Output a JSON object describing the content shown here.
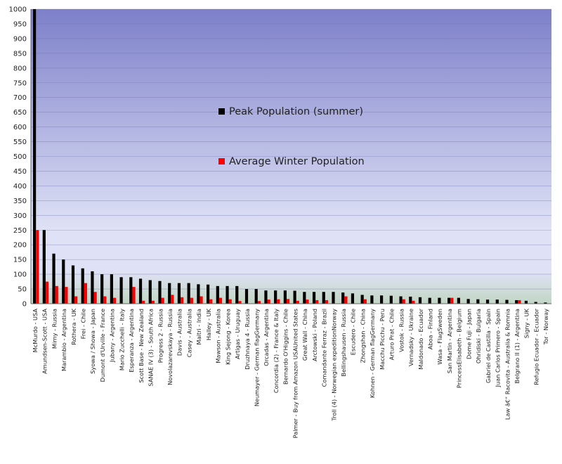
{
  "chart_data": {
    "type": "bar",
    "title": "",
    "xlabel": "",
    "ylabel": "",
    "ylim": [
      0,
      1000
    ],
    "ytick_step": 50,
    "grid": true,
    "legend_placement": "center",
    "colors": {
      "summer": "#000000",
      "winter": "#ff0000",
      "plot_top": "#7d80c9",
      "plot_mid": "#dfe2f6",
      "plot_bottom": "#c2d6c4",
      "gridline": "#6c6fa8"
    },
    "categories": [
      "McMurdo - USA",
      "Amundsen-Scott - USA",
      "Mirny - Russia",
      "Marambio - Argentina",
      "Rothera - UK",
      "Frei - Chile",
      "Syowa / Showa - Japan",
      "Dumont d'Urville - France",
      "Jubany - Argentina",
      "Mario Zucchelli - Italy",
      "Esperanza - Argentina",
      "Scott Base - New Zealand",
      "SANAE IV (3) - South Africa",
      "Progress 2 - Russia",
      "Novolazarevskaya - Russia",
      "Davis - Australia",
      "Casey - Australia",
      "Maitri - India",
      "Halley - UK",
      "Mawson - Australia",
      "King Sejong - Korea",
      "Artigas - Uruguay",
      "Druzhnaya 4 - Russia",
      "Neumayer - German flagGermany",
      "Orcadas - Argentina",
      "Concordia (2) - France & Italy",
      "Bernardo O'Higgins - Chile",
      "Palmer - Buy from Amazon USAUnited States",
      "Great Wall - China",
      "Arctowski - Poland",
      "Comandante Ferraz - Brazil",
      "Troll (4) - Norwegian expeditionNorway",
      "Bellingshausen - Russia",
      "Escudero - Chile",
      "Zhongshan - China",
      "Kohnen - German flagGermany",
      "Macchu Picchu - Peru",
      "Arturo Prat - Chile",
      "Vostok - Russia",
      "Vernadsky - Ukraine",
      "Maldonado - Ecuador",
      "Aboa - Finland",
      "Wasa - FlagSweden",
      "San Martin - Argentina",
      "PrincessElisabeth - Belgium",
      "Dome Fuji - Japan",
      "Ohridiski - Bulgaria",
      "Gabriel de Castilla - Spain",
      "Juan Carlos Primero - Spain",
      "Law â€“ Racovita - Australia & Romnia",
      "Belgrano II (1) - Argentina",
      "Signy - UK",
      "Refugio Ecuador - Ecuador",
      "Tor - Norway"
    ],
    "series": [
      {
        "name": "Peak Population (summer)",
        "values": [
          1000,
          250,
          170,
          150,
          130,
          120,
          110,
          100,
          100,
          90,
          90,
          85,
          80,
          77,
          70,
          70,
          70,
          66,
          65,
          60,
          60,
          60,
          50,
          50,
          45,
          45,
          45,
          44,
          40,
          40,
          40,
          40,
          38,
          35,
          30,
          28,
          28,
          27,
          25,
          24,
          22,
          20,
          20,
          20,
          20,
          16,
          15,
          14,
          14,
          13,
          12,
          10,
          6,
          4
        ]
      },
      {
        "name": "Average Winter Population",
        "values": [
          250,
          75,
          60,
          57,
          25,
          70,
          40,
          25,
          20,
          0,
          57,
          10,
          10,
          20,
          30,
          22,
          20,
          25,
          15,
          20,
          15,
          9,
          0,
          9,
          14,
          15,
          16,
          10,
          14,
          12,
          12,
          0,
          25,
          0,
          15,
          0,
          0,
          0,
          15,
          10,
          0,
          0,
          0,
          20,
          0,
          0,
          0,
          0,
          0,
          0,
          12,
          0,
          0,
          0
        ]
      }
    ]
  }
}
